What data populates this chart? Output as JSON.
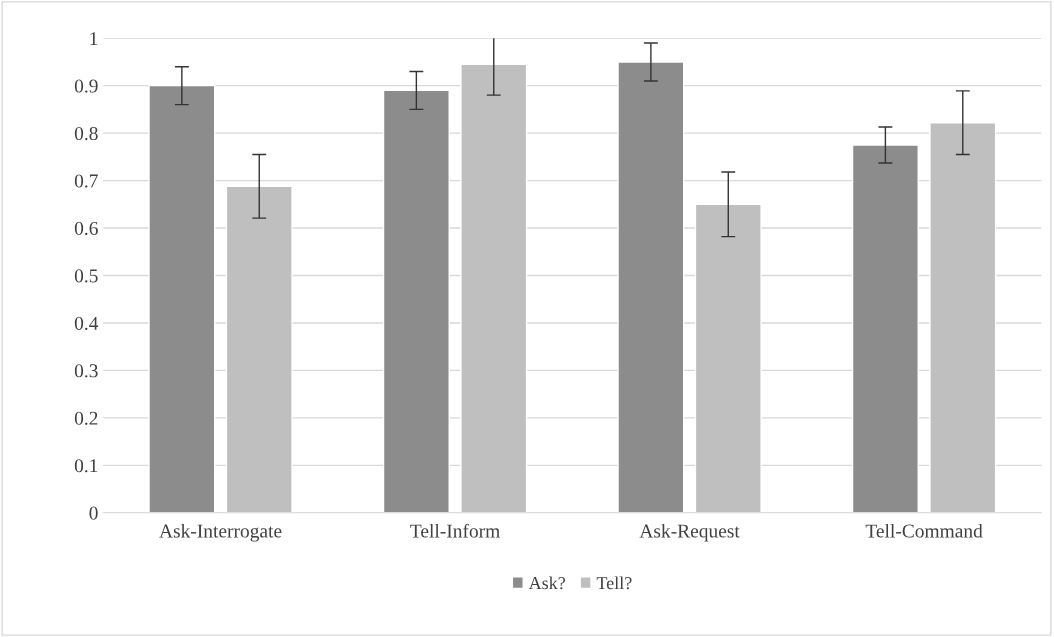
{
  "chart_data": {
    "type": "bar",
    "categories": [
      "Ask-Interrogate",
      "Tell-Inform",
      "Ask-Request",
      "Tell-Command"
    ],
    "series": [
      {
        "name": "Ask?",
        "color": "#8c8c8c",
        "values": [
          0.9,
          0.89,
          0.95,
          0.775
        ],
        "errors": [
          0.04,
          0.04,
          0.04,
          0.038
        ]
      },
      {
        "name": "Tell?",
        "color": "#bfbfbf",
        "values": [
          0.688,
          0.945,
          0.65,
          0.822
        ],
        "errors": [
          0.067,
          0.065,
          0.068,
          0.067
        ]
      }
    ],
    "ylim": [
      0,
      1
    ],
    "yticks": [
      0,
      0.1,
      0.2,
      0.3,
      0.4,
      0.5,
      0.6,
      0.7,
      0.8,
      0.9,
      1
    ],
    "grid": "y",
    "legend": "bottom"
  }
}
